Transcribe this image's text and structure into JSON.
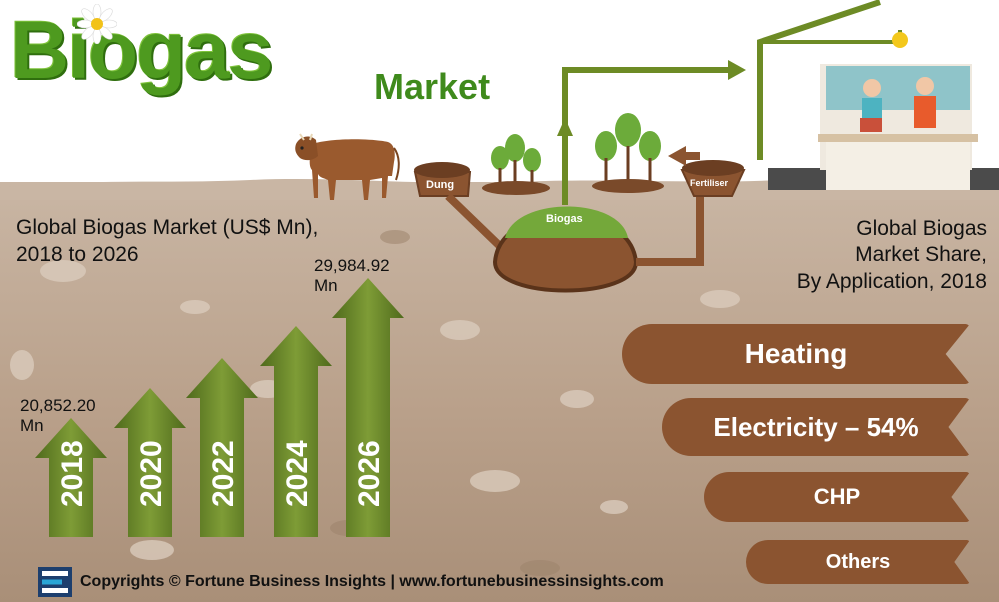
{
  "title": {
    "main": "Biogas",
    "sub": "Market"
  },
  "left_heading": {
    "line1": "Global Biogas Market (US$ Mn),",
    "line2": "2018 to 2026"
  },
  "right_heading": {
    "line1": "Global Biogas",
    "line2": "Market Share,",
    "line3": "By Application, 2018"
  },
  "value_start": {
    "amount": "20,852.20",
    "unit": "Mn"
  },
  "value_end": {
    "amount": "29,984.92",
    "unit": "Mn"
  },
  "years": [
    "2018",
    "2020",
    "2022",
    "2024",
    "2026"
  ],
  "process": {
    "dung": "Dung",
    "biogas": "Biogas",
    "fertiliser": "Fertiliser"
  },
  "applications": {
    "heating": "Heating",
    "electricity": "Electricity – 54%",
    "chp": "CHP",
    "others": "Others"
  },
  "footer": {
    "copyright": "Copyrights © Fortune Business Insights | www.fortunebusinessinsights.com"
  },
  "colors": {
    "grass_green": "#4e9a1f",
    "arrow_green": "#6c8a2a",
    "brown": "#8b5430",
    "soil": "#b9a08a"
  }
}
